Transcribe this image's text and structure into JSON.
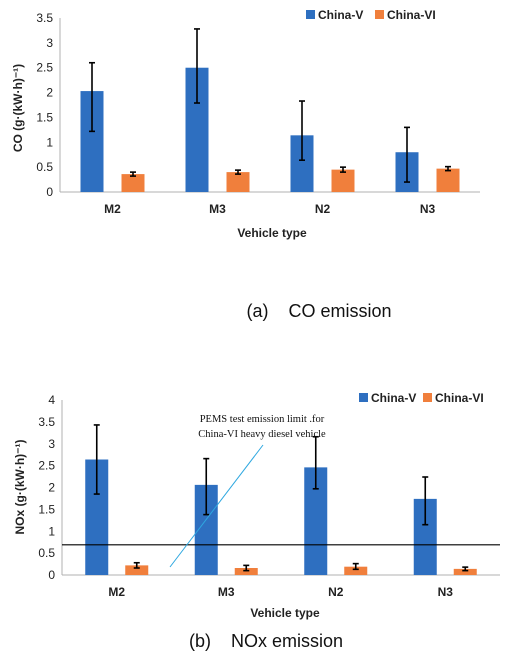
{
  "colors": {
    "china_v": "#2E6FC0",
    "china_vi": "#F07F3C",
    "error_bar": "#000000",
    "limit_line": "#000000",
    "callout": "#2FA8E0"
  },
  "chart_data": [
    {
      "type": "bar",
      "caption": "(a)    CO emission",
      "xlabel": "Vehicle type",
      "ylabel": "CO (g·(kW·h)⁻¹)",
      "categories": [
        "M2",
        "M3",
        "N2",
        "N3"
      ],
      "ylim": [
        0,
        3.5
      ],
      "yticks": [
        "0",
        "0.5",
        "1",
        "1.5",
        "2",
        "2.5",
        "3",
        "3.5"
      ],
      "legend_position": "top-right",
      "series": [
        {
          "name": "China-V",
          "values": [
            2.03,
            2.5,
            1.14,
            0.8
          ],
          "err_low": [
            1.22,
            1.79,
            0.64,
            0.2
          ],
          "err_high": [
            2.6,
            3.28,
            1.83,
            1.3
          ]
        },
        {
          "name": "China-VI",
          "values": [
            0.36,
            0.4,
            0.45,
            0.47
          ],
          "err_low": [
            0.32,
            0.36,
            0.4,
            0.43
          ],
          "err_high": [
            0.4,
            0.44,
            0.5,
            0.51
          ]
        }
      ]
    },
    {
      "type": "bar",
      "caption": "(b)    NOx emission",
      "xlabel": "Vehicle type",
      "ylabel": "NOx (g·(kW·h)⁻¹)",
      "categories": [
        "M2",
        "M3",
        "N2",
        "N3"
      ],
      "ylim": [
        0,
        4
      ],
      "yticks": [
        "0",
        "0.5",
        "1",
        "1.5",
        "2",
        "2.5",
        "3",
        "3.5",
        "4"
      ],
      "legend_position": "top-right",
      "limit_line": 0.69,
      "annotation": [
        "PEMS test emission limit .for",
        "China-VI heavy diesel vehicle"
      ],
      "series": [
        {
          "name": "China-V",
          "values": [
            2.64,
            2.06,
            2.46,
            1.74
          ],
          "err_low": [
            1.85,
            1.38,
            1.97,
            1.15
          ],
          "err_high": [
            3.43,
            2.66,
            3.16,
            2.24
          ]
        },
        {
          "name": "China-VI",
          "values": [
            0.22,
            0.16,
            0.19,
            0.14
          ],
          "err_low": [
            0.16,
            0.1,
            0.13,
            0.1
          ],
          "err_high": [
            0.28,
            0.22,
            0.26,
            0.18
          ]
        }
      ]
    }
  ]
}
